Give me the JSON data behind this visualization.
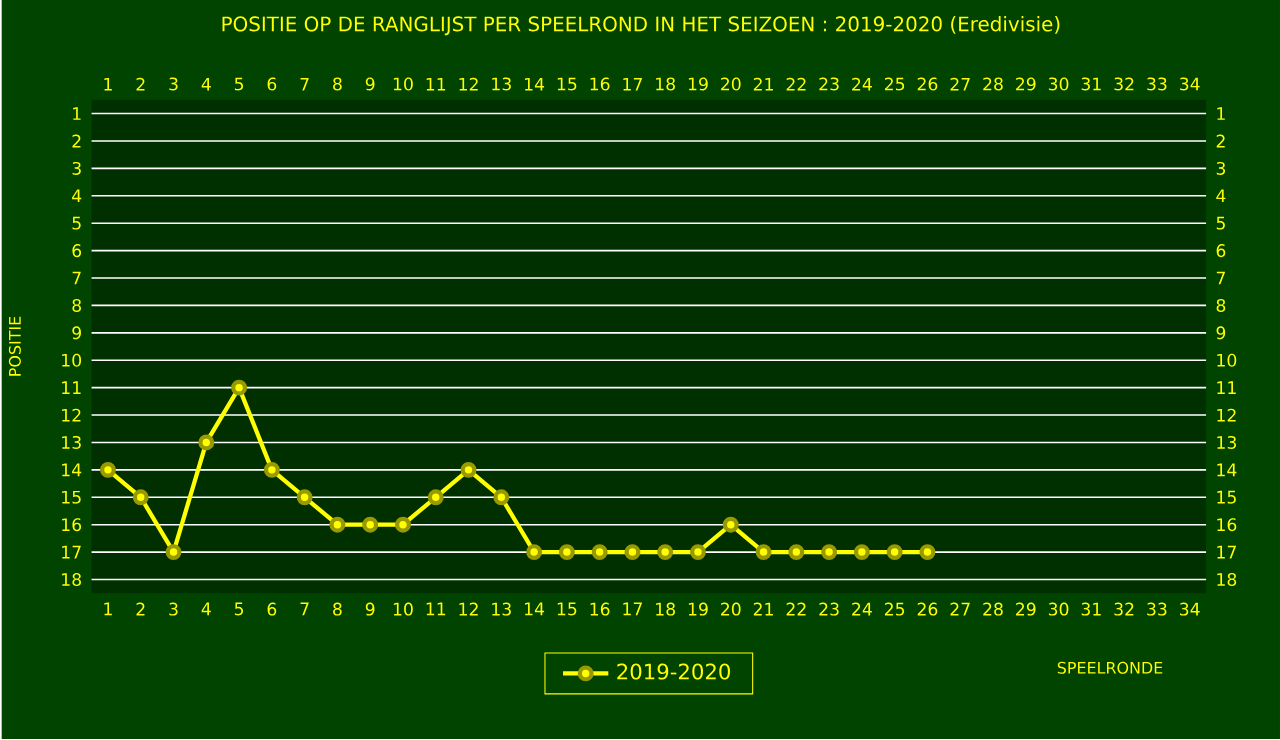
{
  "chart_data": {
    "type": "line",
    "title": "POSITIE OP DE RANGLIJST PER  SPEELROND IN HET SEIZOEN : 2019-2020 (Eredivisie)",
    "xlabel": "SPEELRONDE",
    "ylabel": "POSITIE",
    "x": [
      1,
      2,
      3,
      4,
      5,
      6,
      7,
      8,
      9,
      10,
      11,
      12,
      13,
      14,
      15,
      16,
      17,
      18,
      19,
      20,
      21,
      22,
      23,
      24,
      25,
      26
    ],
    "series": [
      {
        "name": "2019-2020",
        "color": "#ffff00",
        "values": [
          14,
          15,
          17,
          13,
          11,
          14,
          15,
          16,
          16,
          16,
          15,
          14,
          15,
          17,
          17,
          17,
          17,
          17,
          17,
          16,
          17,
          17,
          17,
          17,
          17,
          17
        ]
      }
    ],
    "xlim": [
      0.5,
      34.5
    ],
    "xticks": [
      1,
      2,
      3,
      4,
      5,
      6,
      7,
      8,
      9,
      10,
      11,
      12,
      13,
      14,
      15,
      16,
      17,
      18,
      19,
      20,
      21,
      22,
      23,
      24,
      25,
      26,
      27,
      28,
      29,
      30,
      31,
      32,
      33,
      34
    ],
    "x2lim": [
      0.5,
      34.5
    ],
    "x2ticks": [
      1,
      2,
      3,
      4,
      5,
      6,
      7,
      8,
      9,
      10,
      11,
      12,
      13,
      14,
      15,
      16,
      17,
      18,
      19,
      20,
      21,
      22,
      23,
      24,
      25,
      26,
      27,
      28,
      29,
      30,
      31,
      32,
      33,
      34
    ],
    "ylim": [
      18.5,
      0.5
    ],
    "yticks": [
      1,
      2,
      3,
      4,
      5,
      6,
      7,
      8,
      9,
      10,
      11,
      12,
      13,
      14,
      15,
      16,
      17,
      18
    ],
    "y2lim": [
      18.5,
      0.5
    ],
    "y2ticks": [
      1,
      2,
      3,
      4,
      5,
      6,
      7,
      8,
      9,
      10,
      11,
      12,
      13,
      14,
      15,
      16,
      17,
      18
    ],
    "grid": "y",
    "legend": "bottom",
    "marker": "circle",
    "line_style": "solid"
  }
}
